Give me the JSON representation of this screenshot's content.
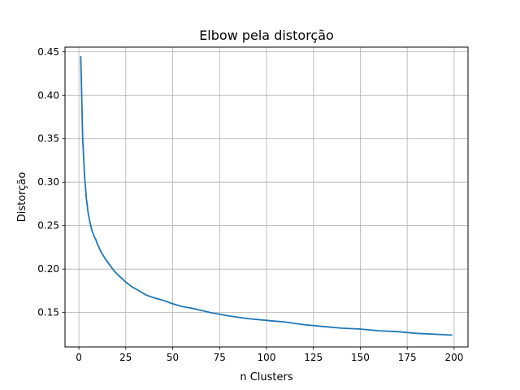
{
  "chart_data": {
    "type": "line",
    "title": "Elbow pela distorção",
    "xlabel": "n Clusters",
    "ylabel": "Distorção",
    "xlim": [
      -7.4,
      207.4
    ],
    "ylim": [
      0.1104,
      0.4554
    ],
    "xticks": [
      0,
      25,
      50,
      75,
      100,
      125,
      150,
      175,
      200
    ],
    "yticks": [
      0.15,
      0.2,
      0.25,
      0.3,
      0.35,
      0.4,
      0.45
    ],
    "grid": true,
    "colors": {
      "line": "#1f77b4",
      "grid": "#b0b0b0",
      "axes": "#000000"
    },
    "series": [
      {
        "x": [
          1,
          2,
          3,
          4,
          5,
          6,
          7,
          8,
          9,
          10,
          12,
          14,
          16,
          18,
          20,
          22,
          25,
          28,
          32,
          36,
          40,
          45,
          50,
          55,
          60,
          70,
          80,
          90,
          100,
          110,
          120,
          130,
          140,
          150,
          160,
          170,
          180,
          190,
          199
        ],
        "values": [
          0.445,
          0.352,
          0.308,
          0.281,
          0.264,
          0.253,
          0.244,
          0.238,
          0.234,
          0.228,
          0.219,
          0.212,
          0.206,
          0.2,
          0.195,
          0.191,
          0.185,
          0.18,
          0.175,
          0.17,
          0.167,
          0.164,
          0.16,
          0.157,
          0.155,
          0.15,
          0.146,
          0.143,
          0.141,
          0.139,
          0.136,
          0.134,
          0.132,
          0.131,
          0.129,
          0.128,
          0.126,
          0.125,
          0.124
        ]
      }
    ]
  }
}
